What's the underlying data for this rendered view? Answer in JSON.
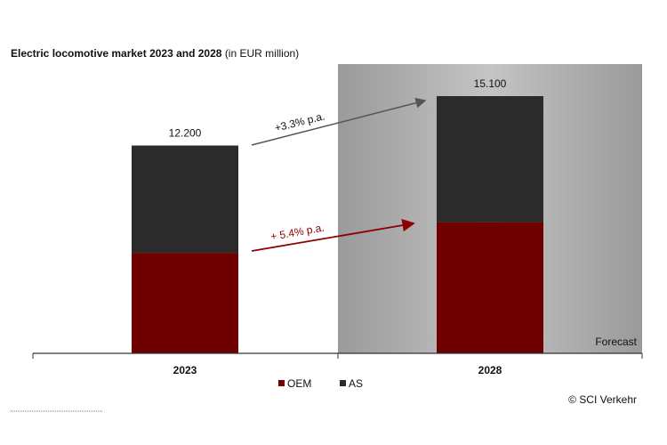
{
  "chart_data": {
    "type": "stacked_bar",
    "title": "Electric locomotive market 2023 and 2028",
    "subtitle": "(in EUR million)",
    "categories": [
      "2023",
      "2028"
    ],
    "series": [
      {
        "name": "OEM",
        "color": "#6e0000",
        "values": [
          5900,
          7700
        ]
      },
      {
        "name": "AS",
        "color": "#2b2b2b",
        "values": [
          6300,
          7400
        ]
      }
    ],
    "totals": {
      "values": [
        12200,
        15100
      ],
      "value_labels": [
        "12.200",
        "15.100"
      ]
    },
    "annotations": [
      "+3.3% p.a.",
      "+ 5.4% p.a.",
      "Forecast",
      "© SCI Verkehr"
    ]
  }
}
